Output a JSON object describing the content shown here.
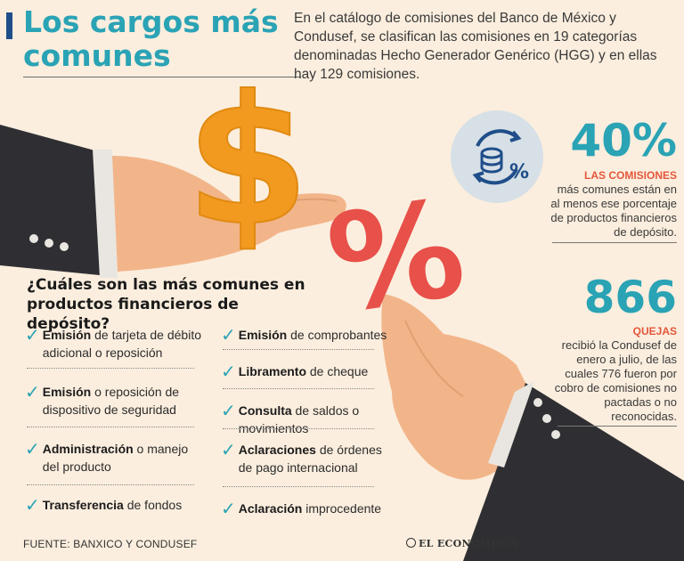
{
  "header": {
    "title": "Los cargos más comunes",
    "intro": "En el catálogo de comisiones del Banco de México y Condusef, se clasifican las comisiones en 19 categorías denominadas Hecho Generador Genérico (HGG) y en ellas hay 129 comisiones."
  },
  "graphics": {
    "dollar_glyph": "$",
    "percent_glyph": "%",
    "icon_percent": "%"
  },
  "stat1": {
    "value": "40%",
    "label": "LAS COMISIONES",
    "text": "más comunes están en al menos ese porcentaje de productos financieros de depósito."
  },
  "stat2": {
    "value": "866",
    "label": "QUEJAS",
    "text": "recibió la Condusef de enero a julio, de las cuales 776 fueron por cobro de comisiones no pactadas o no reconocidas."
  },
  "question": "¿Cuáles son las más comunes en productos financieros de depósito?",
  "list_left": [
    {
      "bold": "Emisión",
      "rest": " de tarjeta de débito adicional o reposición"
    },
    {
      "bold": "Emisión",
      "rest": " o reposición de dispositivo de seguridad"
    },
    {
      "bold": "Administración",
      "rest": " o manejo del producto"
    },
    {
      "bold": "Transferencia",
      "rest": " de fondos"
    }
  ],
  "list_right": [
    {
      "bold": "Emisión",
      "rest": " de comprobantes"
    },
    {
      "bold": "Libramento",
      "rest": " de cheque"
    },
    {
      "bold": "Consulta",
      "rest": " de saldos o movimientos"
    },
    {
      "bold": "Aclaraciones",
      "rest": " de órdenes de pago internacional"
    },
    {
      "bold": "Aclaración",
      "rest": " improcedente"
    }
  ],
  "check_glyph": "✓",
  "footer": {
    "source": "FUENTE: BANXICO Y CONDUSEF",
    "brand": "EL ECONOMISTA"
  },
  "colors": {
    "background": "#fbeede",
    "accent_teal": "#2aa3b5",
    "accent_orange": "#f29a1f",
    "accent_red": "#e8504a",
    "label_red": "#e4573b",
    "suit": "#2f2f33",
    "skin": "#f2b58a"
  }
}
